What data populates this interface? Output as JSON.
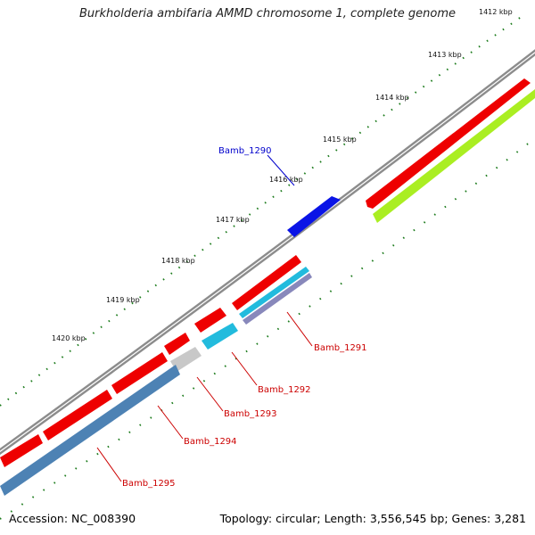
{
  "title": "Burkholderia ambifaria AMMD chromosome 1, complete genome",
  "footer": {
    "accession": "Accession: NC_008390",
    "stats": "Topology: circular; Length: 3,556,545 bp; Genes: 3,281"
  },
  "scale_labels": [
    "1412 kbp",
    "1413 kbp",
    "1414 kbp",
    "1415 kbp",
    "1416 kbp",
    "1417 kbp",
    "1418 kbp",
    "1419 kbp",
    "1420 kbp"
  ],
  "gene_labels": [
    {
      "id": "Bamb_1290",
      "color": "#0000cc"
    },
    {
      "id": "Bamb_1291",
      "color": "#cc0000"
    },
    {
      "id": "Bamb_1292",
      "color": "#cc0000"
    },
    {
      "id": "Bamb_1293",
      "color": "#cc0000"
    },
    {
      "id": "Bamb_1294",
      "color": "#cc0000"
    },
    {
      "id": "Bamb_1295",
      "color": "#cc0000"
    }
  ],
  "colors": {
    "backbone": "#8c8c8c",
    "cds": "#ee0000",
    "gene_yellow_green": "#aaee22",
    "gene_blue": "#0a14e6",
    "gene_cyan": "#22bbdd",
    "gene_purple": "#8888bb",
    "gene_grey": "#c8c8c8",
    "gene_steelblue": "#4d82b4",
    "tick": "#1a7a1a"
  }
}
